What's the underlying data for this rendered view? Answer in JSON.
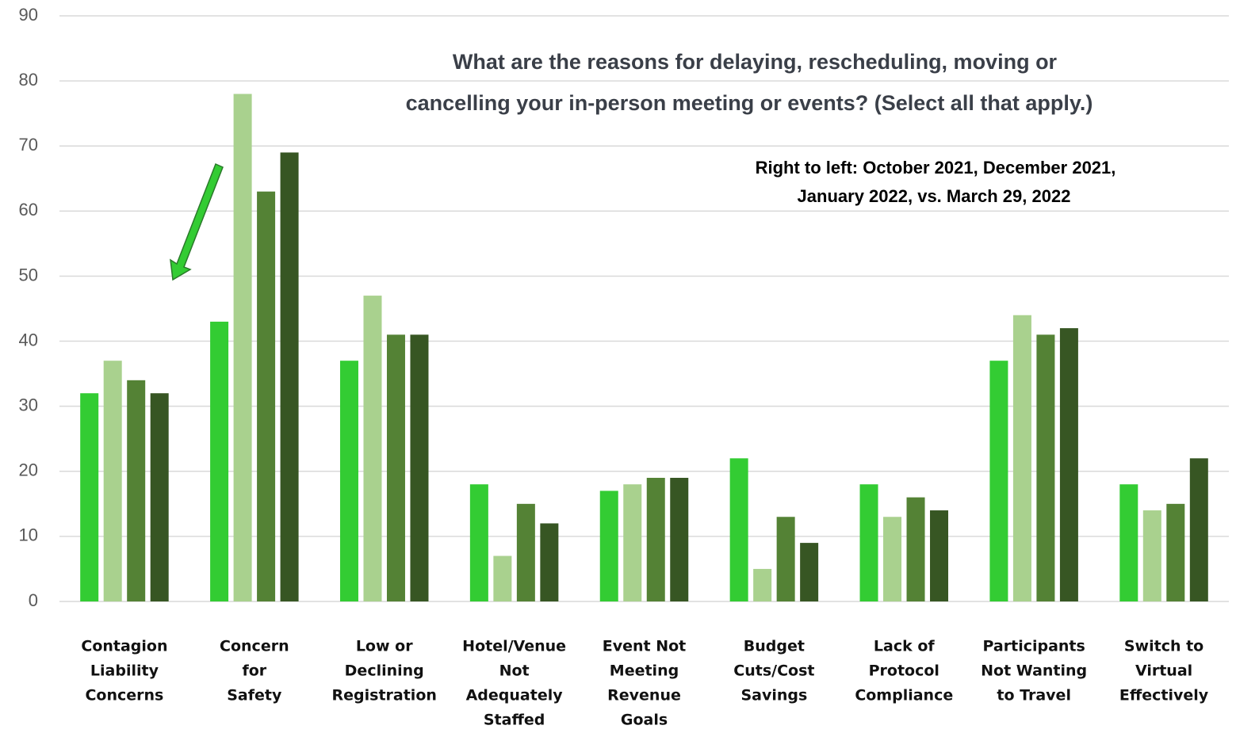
{
  "chart_data": {
    "type": "bar",
    "title": [
      "What are the reasons for delaying, rescheduling, moving or",
      "cancelling your in-person meeting or events? (Select all that apply.)"
    ],
    "subtitle": [
      "Right to left: October 2021, December 2021,",
      "January 2022, vs. March 29, 2022"
    ],
    "categories": [
      [
        "Contagion",
        "Liability",
        "Concerns"
      ],
      [
        "Concern",
        "for",
        "Safety"
      ],
      [
        "Low or",
        "Declining",
        "Registration"
      ],
      [
        "Hotel/Venue",
        "Not",
        "Adequately",
        "Staffed"
      ],
      [
        "Event Not",
        "Meeting",
        "Revenue",
        "Goals"
      ],
      [
        "Budget",
        "Cuts/Cost",
        "Savings"
      ],
      [
        "Lack of",
        "Protocol",
        "Compliance"
      ],
      [
        "Participants",
        "Not Wanting",
        "to Travel"
      ],
      [
        "Switch to",
        "Virtual",
        "Effectively"
      ]
    ],
    "series": [
      {
        "color": "#33cc33",
        "values": [
          32,
          43,
          37,
          18,
          17,
          22,
          18,
          37,
          18
        ]
      },
      {
        "color": "#a9d18e",
        "values": [
          37,
          78,
          47,
          7,
          18,
          5,
          13,
          44,
          14
        ]
      },
      {
        "color": "#548235",
        "values": [
          34,
          63,
          41,
          15,
          19,
          13,
          16,
          41,
          15
        ]
      },
      {
        "color": "#375623",
        "values": [
          32,
          69,
          41,
          12,
          19,
          9,
          14,
          42,
          22
        ]
      }
    ],
    "ylim": [
      0,
      90
    ],
    "yticks": [
      0,
      10,
      20,
      30,
      40,
      50,
      60,
      70,
      80,
      90
    ],
    "grid": true
  }
}
